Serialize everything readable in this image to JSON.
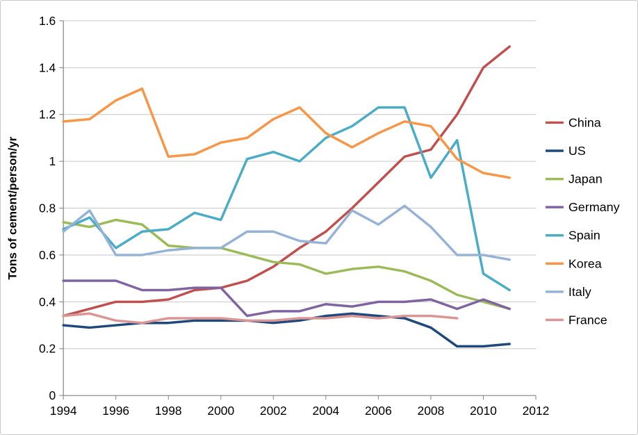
{
  "chart_data": {
    "type": "line",
    "ylabel": "Tons of cement/person/yr",
    "xlabel": "",
    "xlim": [
      1994,
      2012
    ],
    "ylim": [
      0,
      1.6
    ],
    "grid": true,
    "legend_position": "right",
    "x": [
      1994,
      1995,
      1996,
      1997,
      1998,
      1999,
      2000,
      2001,
      2002,
      2003,
      2004,
      2005,
      2006,
      2007,
      2008,
      2009,
      2010,
      2011
    ],
    "xticks": [
      1994,
      1996,
      1998,
      2000,
      2002,
      2004,
      2006,
      2008,
      2010,
      2012
    ],
    "xtick_labels": [
      "1994",
      "1996",
      "1998",
      "2000",
      "2002",
      "2004",
      "2006",
      "2008",
      "2010",
      "2012"
    ],
    "yticks": [
      0,
      0.2,
      0.4,
      0.6,
      0.8,
      1,
      1.2,
      1.4,
      1.6
    ],
    "ytick_labels": [
      "0",
      "0.2",
      "0.4",
      "0.6",
      "0.8",
      "1",
      "1.2",
      "1.4",
      "1.6"
    ],
    "series": [
      {
        "name": "China",
        "color": "#C0504D",
        "values": [
          0.34,
          0.37,
          0.4,
          0.4,
          0.41,
          0.45,
          0.46,
          0.49,
          0.55,
          0.63,
          0.7,
          0.8,
          0.91,
          1.02,
          1.05,
          1.2,
          1.4,
          1.49
        ]
      },
      {
        "name": "US",
        "color": "#1F497D",
        "values": [
          0.3,
          0.29,
          0.3,
          0.31,
          0.31,
          0.32,
          0.32,
          0.32,
          0.31,
          0.32,
          0.34,
          0.35,
          0.34,
          0.33,
          0.29,
          0.21,
          0.21,
          0.22
        ]
      },
      {
        "name": "Japan",
        "color": "#9BBB59",
        "values": [
          0.74,
          0.72,
          0.75,
          0.73,
          0.64,
          0.63,
          0.63,
          0.6,
          0.57,
          0.56,
          0.52,
          0.54,
          0.55,
          0.53,
          0.49,
          0.43,
          0.4,
          0.37
        ]
      },
      {
        "name": "Germany",
        "color": "#8064A2",
        "values": [
          0.49,
          0.49,
          0.49,
          0.45,
          0.45,
          0.46,
          0.46,
          0.34,
          0.36,
          0.36,
          0.39,
          0.38,
          0.4,
          0.4,
          0.41,
          0.37,
          0.41,
          0.37
        ]
      },
      {
        "name": "Spain",
        "color": "#4BACC6",
        "values": [
          0.71,
          0.76,
          0.63,
          0.7,
          0.71,
          0.78,
          0.75,
          1.01,
          1.04,
          1.0,
          1.1,
          1.15,
          1.23,
          1.23,
          0.93,
          1.09,
          0.52,
          0.45
        ]
      },
      {
        "name": "Korea",
        "color": "#F79646",
        "values": [
          1.17,
          1.18,
          1.26,
          1.31,
          1.02,
          1.03,
          1.08,
          1.1,
          1.18,
          1.23,
          1.12,
          1.06,
          1.12,
          1.17,
          1.15,
          1.01,
          0.95,
          0.93
        ]
      },
      {
        "name": "Italy",
        "color": "#95B3D7",
        "values": [
          0.7,
          0.79,
          0.6,
          0.6,
          0.62,
          0.63,
          0.63,
          0.7,
          0.7,
          0.66,
          0.65,
          0.79,
          0.73,
          0.81,
          0.72,
          0.6,
          0.6,
          0.58
        ]
      },
      {
        "name": "France",
        "color": "#D99694",
        "values": [
          0.34,
          0.35,
          0.32,
          0.31,
          0.33,
          0.33,
          0.33,
          0.32,
          0.32,
          0.33,
          0.33,
          0.34,
          0.33,
          0.34,
          0.34,
          0.33,
          null,
          null
        ]
      }
    ],
    "colors": {
      "gridline": "#C6C6C6",
      "axis": "#808080",
      "text": "#000000"
    }
  }
}
